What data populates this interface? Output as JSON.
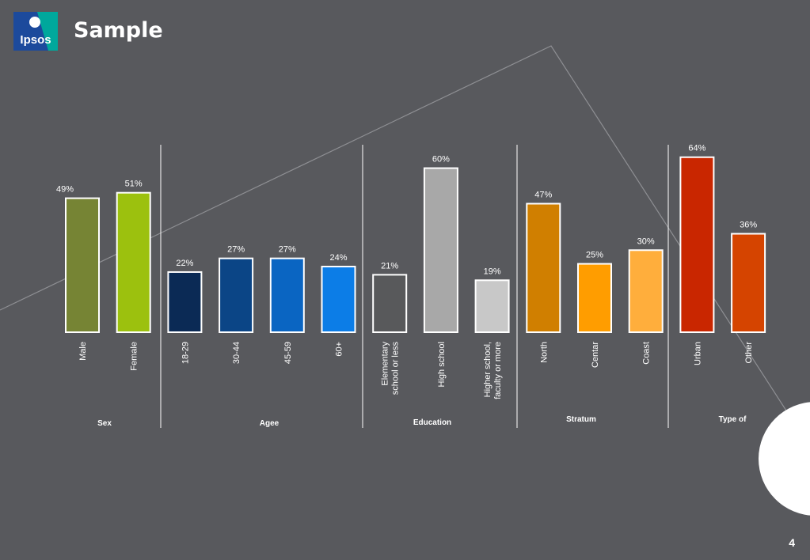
{
  "header": {
    "title": "Sample",
    "logo_text": "Ipsos",
    "logo_color": "#1c4a9c",
    "logo_accent_color": "#00a89c"
  },
  "page_number": "4",
  "chart_data": {
    "type": "bar",
    "ylim": [
      0,
      70
    ],
    "grid": false,
    "legend": "none",
    "value_suffix": "%",
    "groups": [
      {
        "name": "Sex",
        "categories": [
          "Male",
          "Female"
        ],
        "values": [
          49,
          51
        ],
        "colors": [
          "#768434",
          "#9cc10e"
        ]
      },
      {
        "name": "Agee",
        "categories": [
          "18-29",
          "30-44",
          "45-59",
          "60+"
        ],
        "values": [
          22,
          27,
          27,
          24
        ],
        "colors": [
          "#0b2a55",
          "#0b4586",
          "#0a65c2",
          "#0c7de7"
        ]
      },
      {
        "name": "Education",
        "categories": [
          "Elementary\nschool or less",
          "High school",
          "Higher school,\nfaculty or more"
        ],
        "values": [
          21,
          60,
          19
        ],
        "colors": [
          "#58595b",
          "#a8a8a8",
          "#c8c8c8"
        ]
      },
      {
        "name": "Stratum",
        "categories": [
          "North",
          "Centar",
          "Coast"
        ],
        "values": [
          47,
          25,
          30
        ],
        "colors": [
          "#d07f00",
          "#ff9d00",
          "#ffae3c"
        ]
      },
      {
        "name": "Type of",
        "categories": [
          "Urban",
          "Other"
        ],
        "values": [
          64,
          36
        ],
        "colors": [
          "#c92600",
          "#d54400"
        ]
      }
    ]
  }
}
